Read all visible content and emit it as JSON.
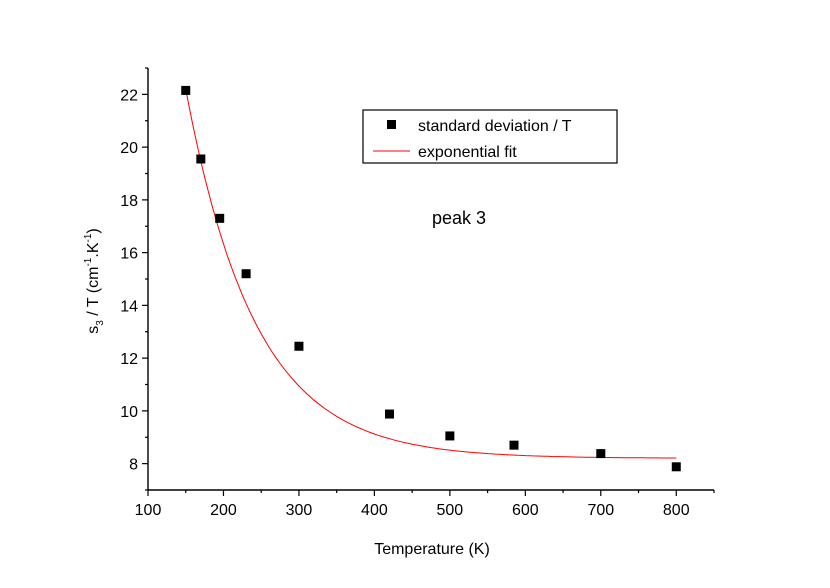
{
  "chart_data": {
    "type": "scatter",
    "xlabel": "Temperature (K)",
    "ylabel": {
      "parts": [
        "s",
        "3",
        " / T (cm",
        "-1",
        ".K",
        "-1",
        ")"
      ]
    },
    "xlim": [
      100,
      850
    ],
    "ylim": [
      7,
      23
    ],
    "x_ticks": [
      100,
      200,
      300,
      400,
      500,
      600,
      700,
      800
    ],
    "x_tick_labels": [
      "100",
      "200",
      "300",
      "400",
      "500",
      "600",
      "700",
      "800"
    ],
    "y_ticks": [
      8,
      10,
      12,
      14,
      16,
      18,
      20,
      22
    ],
    "y_tick_labels": [
      "8",
      "10",
      "12",
      "14",
      "16",
      "18",
      "20",
      "22"
    ],
    "grid": false,
    "legend_position": "top-right",
    "annotation": "peak 3",
    "series": [
      {
        "name": "standard deviation / T",
        "kind": "markers",
        "marker": "square",
        "color": "#000000",
        "x": [
          150,
          170,
          195,
          230,
          300,
          420,
          500,
          585,
          700,
          800
        ],
        "y": [
          22.15,
          19.55,
          17.3,
          15.2,
          12.45,
          9.88,
          9.05,
          8.7,
          8.38,
          7.88
        ]
      },
      {
        "name": "exponential fit",
        "kind": "line",
        "color": "#ff0000",
        "model": {
          "y0": 8.2,
          "A": 14.0,
          "x0": 150,
          "t": 92
        },
        "x_range": [
          150,
          800
        ]
      }
    ]
  }
}
